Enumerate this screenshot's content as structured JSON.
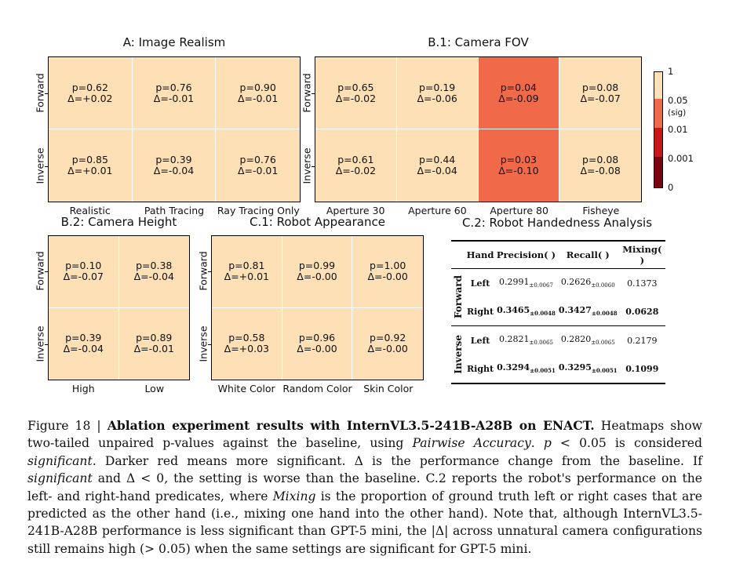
{
  "colors": {
    "nonsig": "#fde0b6",
    "p_0.01_0.05": "#f06a4a",
    "p_0.001_0.01": "#c8171c",
    "p_0_0.001": "#7a0510"
  },
  "chart_data": [
    {
      "type": "heatmap",
      "title": "A: Image Realism",
      "rows": [
        "Forward",
        "Inverse"
      ],
      "columns": [
        "Realistic",
        "Path Tracing",
        "Ray Tracing Only"
      ],
      "p": [
        [
          "0.62",
          "0.76",
          "0.90"
        ],
        [
          "0.85",
          "0.39",
          "0.76"
        ]
      ],
      "delta": [
        [
          "+0.02",
          "-0.01",
          "-0.01"
        ],
        [
          "+0.01",
          "-0.04",
          "-0.01"
        ]
      ]
    },
    {
      "type": "heatmap",
      "title": "B.1: Camera FOV",
      "rows": [
        "Forward",
        "Inverse"
      ],
      "columns": [
        "Aperture 30",
        "Aperture 60",
        "Aperture 80",
        "Fisheye"
      ],
      "p": [
        [
          "0.65",
          "0.19",
          "0.04",
          "0.08"
        ],
        [
          "0.61",
          "0.44",
          "0.03",
          "0.08"
        ]
      ],
      "delta": [
        [
          "-0.02",
          "-0.06",
          "-0.09",
          "-0.07"
        ],
        [
          "-0.02",
          "-0.04",
          "-0.10",
          "-0.08"
        ]
      ]
    },
    {
      "type": "heatmap",
      "title": "B.2: Camera Height",
      "rows": [
        "Forward",
        "Inverse"
      ],
      "columns": [
        "High",
        "Low"
      ],
      "p": [
        [
          "0.10",
          "0.38"
        ],
        [
          "0.39",
          "0.89"
        ]
      ],
      "delta": [
        [
          "-0.07",
          "-0.04"
        ],
        [
          "-0.04",
          "-0.01"
        ]
      ]
    },
    {
      "type": "heatmap",
      "title": "C.1: Robot Appearance",
      "rows": [
        "Forward",
        "Inverse"
      ],
      "columns": [
        "White Color",
        "Random Color",
        "Skin Color"
      ],
      "p": [
        [
          "0.81",
          "0.99",
          "1.00"
        ],
        [
          "0.58",
          "0.96",
          "0.92"
        ]
      ],
      "delta": [
        [
          "+0.01",
          "-0.00",
          "-0.00"
        ],
        [
          "+0.03",
          "-0.00",
          "-0.00"
        ]
      ]
    }
  ],
  "colorbar": {
    "ticks": [
      "1",
      "0.05",
      "(sig)",
      "0.01",
      "0.001",
      "0"
    ]
  },
  "table": {
    "title": "C.2: Robot Handedness Analysis",
    "headers": [
      "Hand",
      "Precision( )",
      "Recall( )",
      "Mixing( )"
    ],
    "groups": [
      {
        "label": "Forward",
        "rows": [
          {
            "hand": "Left",
            "precision": "0.2991",
            "precision_std": "±0.0067",
            "recall": "0.2626",
            "recall_std": "±0.0060",
            "mixing": "0.1373",
            "bold": false
          },
          {
            "hand": "Right",
            "precision": "0.3465",
            "precision_std": "±0.0048",
            "recall": "0.3427",
            "recall_std": "±0.0048",
            "mixing": "0.0628",
            "bold": true
          }
        ]
      },
      {
        "label": "Inverse",
        "rows": [
          {
            "hand": "Left",
            "precision": "0.2821",
            "precision_std": "±0.0065",
            "recall": "0.2820",
            "recall_std": "±0.0065",
            "mixing": "0.2179",
            "bold": false
          },
          {
            "hand": "Right",
            "precision": "0.3294",
            "precision_std": "±0.0051",
            "recall": "0.3295",
            "recall_std": "±0.0051",
            "mixing": "0.1099",
            "bold": true
          }
        ]
      }
    ]
  },
  "caption": {
    "label": "Figure 18 | ",
    "bold": "Ablation experiment results with InternVL3.5-241B-A28B on ENACT.",
    "p1": " Heatmaps show two-tailed unpaired p-values against the baseline, using ",
    "i1": "Pairwise Accuracy",
    "p2": ". ",
    "i2": "p",
    "p3": " < 0.05 is considered ",
    "i3": "significant",
    "p4": ". Darker red means more significant. Δ is the performance change from the baseline. If ",
    "i4": "significant",
    "p5": " and Δ < 0, the setting is worse than the baseline. C.2 reports the robot's performance on the left- and right-hand predicates, where ",
    "i5": "Mixing",
    "p6": " is the proportion of ground truth left or right cases that are predicted as the other hand (i.e., mixing one hand into the other hand). Note that, although InternVL3.5-241B-A28B performance is less significant than GPT-5 mini, the |Δ| across unnatural camera configurations still remains high (> 0.05) when the same settings are significant for GPT-5 mini."
  }
}
